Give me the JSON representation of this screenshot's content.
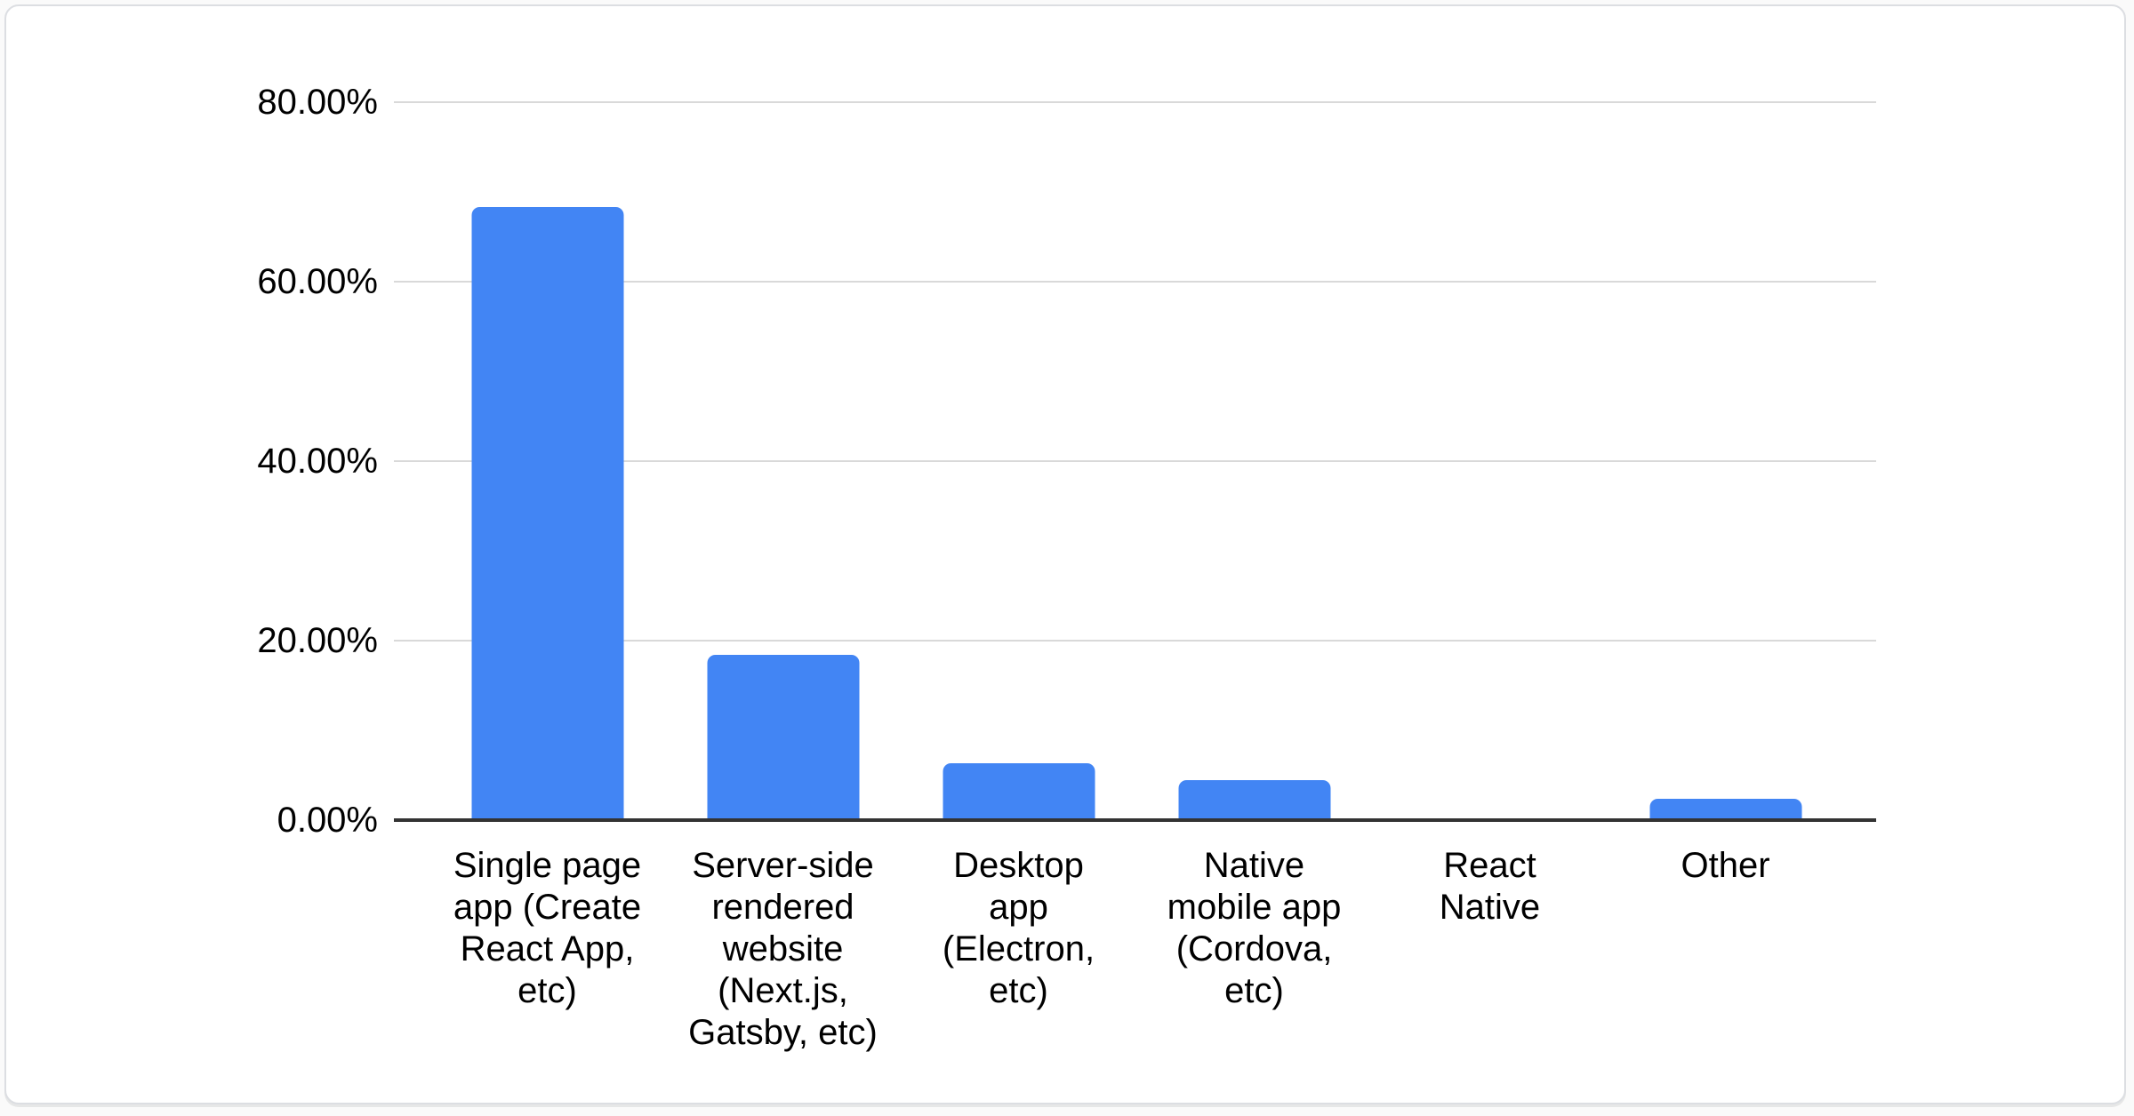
{
  "chart_data": {
    "type": "bar",
    "title": "",
    "categories": [
      "Single page app (Create React App, etc)",
      "Server-side rendered website (Next.js, Gatsby, etc)",
      "Desktop app (Electron, etc)",
      "Native mobile app (Cordova, etc)",
      "React Native",
      "Other"
    ],
    "category_label_lines": [
      [
        "Single page",
        "app (Create",
        "React App,",
        "etc)"
      ],
      [
        "Server-side",
        "rendered",
        "website",
        "(Next.js,",
        "Gatsby, etc)"
      ],
      [
        "Desktop",
        "app",
        "(Electron,",
        "etc)"
      ],
      [
        "Native",
        "mobile app",
        "(Cordova,",
        "etc)"
      ],
      [
        "React",
        "Native"
      ],
      [
        "Other"
      ]
    ],
    "values": [
      68.3,
      18.4,
      6.3,
      4.5,
      0,
      2.4
    ],
    "unit": "%",
    "y_tick_labels": [
      "80.00%",
      "60.00%",
      "40.00%",
      "20.00%",
      "0.00%"
    ],
    "ylim": [
      0,
      80
    ],
    "grid": true,
    "legend_position": "none",
    "colors": {
      "bar": "#4285f4",
      "gridline": "#d9d9d9",
      "axis_line": "#333333",
      "label": "#000000"
    }
  }
}
